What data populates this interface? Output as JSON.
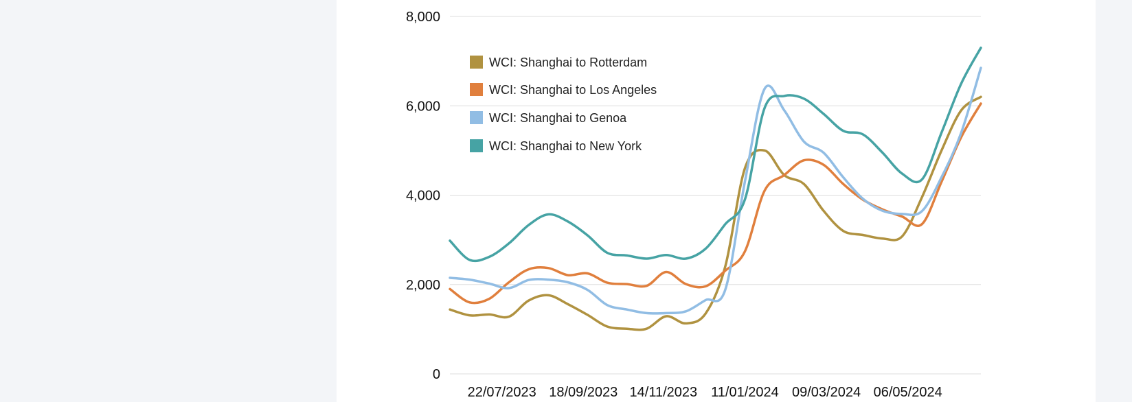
{
  "chart_data": {
    "type": "line",
    "title": "",
    "xlabel": "",
    "ylabel": "",
    "ylim": [
      0,
      8000
    ],
    "y_ticks": [
      "0",
      "2,000",
      "4,000",
      "6,000",
      "8,000"
    ],
    "x_tick_labels": [
      "22/07/2023",
      "18/09/2023",
      "14/11/2023",
      "11/01/2024",
      "09/03/2024",
      "06/05/2024"
    ],
    "grid": "horizontal",
    "legend_position": "top-left",
    "dates": [
      "2023-06-15",
      "2023-06-29",
      "2023-07-13",
      "2023-07-27",
      "2023-08-10",
      "2023-08-24",
      "2023-09-07",
      "2023-09-21",
      "2023-10-05",
      "2023-10-19",
      "2023-11-02",
      "2023-11-16",
      "2023-11-30",
      "2023-12-14",
      "2023-12-28",
      "2024-01-11",
      "2024-01-25",
      "2024-02-08",
      "2024-02-22",
      "2024-03-07",
      "2024-03-21",
      "2024-04-04",
      "2024-04-18",
      "2024-05-02",
      "2024-05-16",
      "2024-05-30",
      "2024-06-13",
      "2024-06-27"
    ],
    "series": [
      {
        "name": "WCI: Shanghai to Rotterdam",
        "color": "#b09240",
        "values": [
          1440,
          1310,
          1330,
          1280,
          1640,
          1760,
          1560,
          1320,
          1060,
          1010,
          1010,
          1290,
          1130,
          1350,
          2400,
          4600,
          5000,
          4450,
          4250,
          3650,
          3200,
          3110,
          3030,
          3080,
          3950,
          5000,
          5900,
          6200
        ]
      },
      {
        "name": "WCI: Shanghai to Los Angeles",
        "color": "#e07f3d",
        "values": [
          1900,
          1600,
          1680,
          2050,
          2340,
          2370,
          2210,
          2250,
          2040,
          2010,
          1970,
          2280,
          2010,
          1960,
          2310,
          2740,
          4100,
          4450,
          4780,
          4680,
          4250,
          3900,
          3680,
          3520,
          3350,
          4300,
          5300,
          6050
        ]
      },
      {
        "name": "WCI: Shanghai to Genoa",
        "color": "#91bde4",
        "values": [
          2150,
          2110,
          2020,
          1920,
          2100,
          2110,
          2050,
          1880,
          1540,
          1440,
          1360,
          1360,
          1400,
          1650,
          1880,
          4300,
          6380,
          5900,
          5200,
          4950,
          4400,
          3920,
          3650,
          3580,
          3640,
          4400,
          5400,
          6850
        ]
      },
      {
        "name": "WCI: Shanghai to New York",
        "color": "#46a3a4",
        "values": [
          2980,
          2550,
          2620,
          2920,
          3330,
          3570,
          3410,
          3100,
          2710,
          2650,
          2580,
          2660,
          2580,
          2800,
          3350,
          3900,
          5950,
          6220,
          6160,
          5820,
          5440,
          5360,
          4950,
          4480,
          4350,
          5400,
          6500,
          7300
        ]
      }
    ]
  }
}
